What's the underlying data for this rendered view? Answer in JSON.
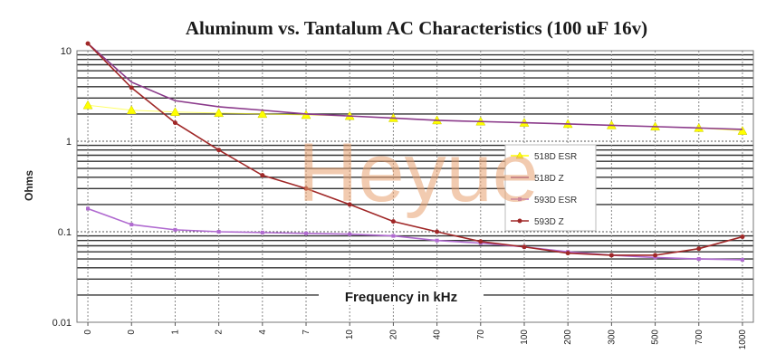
{
  "chart_data": {
    "type": "line",
    "title": "Aluminum vs. Tantalum AC Characteristics (100 uF 16v)",
    "xlabel": "Frequency in kHz",
    "ylabel": "Ohms",
    "yscale": "log",
    "ylim": [
      0.01,
      10
    ],
    "yticks": [
      "10",
      "1",
      "0.1",
      "0.01"
    ],
    "categories": [
      "0",
      "0",
      "1",
      "2",
      "4",
      "7",
      "10",
      "20",
      "40",
      "70",
      "100",
      "200",
      "300",
      "500",
      "700",
      "1000"
    ],
    "grid": true,
    "legend_position": "right",
    "series": [
      {
        "name": "518D ESR",
        "color": "#ffff00",
        "marker": "triangle",
        "values": [
          2.5,
          2.2,
          2.1,
          2.05,
          2.0,
          1.95,
          1.9,
          1.8,
          1.7,
          1.65,
          1.6,
          1.55,
          1.5,
          1.45,
          1.4,
          1.3
        ]
      },
      {
        "name": "518D Z",
        "color": "#8b3a8b",
        "marker": "none",
        "values": [
          12,
          4.5,
          2.8,
          2.4,
          2.2,
          2.0,
          1.9,
          1.8,
          1.7,
          1.65,
          1.6,
          1.55,
          1.5,
          1.45,
          1.4,
          1.35
        ]
      },
      {
        "name": "593D ESR",
        "color": "#b06ad0",
        "marker": "square",
        "values": [
          0.18,
          0.12,
          0.105,
          0.1,
          0.098,
          0.096,
          0.094,
          0.09,
          0.08,
          0.075,
          0.068,
          0.06,
          0.055,
          0.052,
          0.05,
          0.049
        ]
      },
      {
        "name": "593D Z",
        "color": "#a02828",
        "marker": "dot",
        "values": [
          12,
          3.9,
          1.6,
          0.8,
          0.42,
          0.3,
          0.2,
          0.13,
          0.1,
          0.078,
          0.068,
          0.058,
          0.055,
          0.055,
          0.065,
          0.088
        ]
      }
    ],
    "watermark": "Heyue"
  }
}
